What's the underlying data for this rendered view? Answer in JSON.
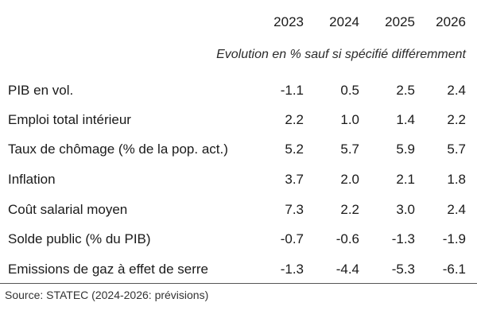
{
  "table": {
    "years": [
      "2023",
      "2024",
      "2025",
      "2026"
    ],
    "subtitle": "Evolution en % sauf si spécifié différemment",
    "rows": [
      {
        "label": "PIB en vol.",
        "values": [
          "-1.1",
          "0.5",
          "2.5",
          "2.4"
        ]
      },
      {
        "label": "Emploi total intérieur",
        "values": [
          "2.2",
          "1.0",
          "1.4",
          "2.2"
        ]
      },
      {
        "label": "Taux de chômage (% de la pop. act.)",
        "values": [
          "5.2",
          "5.7",
          "5.9",
          "5.7"
        ]
      },
      {
        "label": "Inflation",
        "values": [
          "3.7",
          "2.0",
          "2.1",
          "1.8"
        ]
      },
      {
        "label": "Coût salarial moyen",
        "values": [
          "7.3",
          "2.2",
          "3.0",
          "2.4"
        ]
      },
      {
        "label": "Solde public (% du PIB)",
        "values": [
          "-0.7",
          "-0.6",
          "-1.3",
          "-1.9"
        ]
      },
      {
        "label": "Emissions de gaz à effet de serre",
        "values": [
          "-1.3",
          "-4.4",
          "-5.3",
          "-6.1"
        ]
      }
    ]
  },
  "source": "Source: STATEC (2024-2026: prévisions)"
}
